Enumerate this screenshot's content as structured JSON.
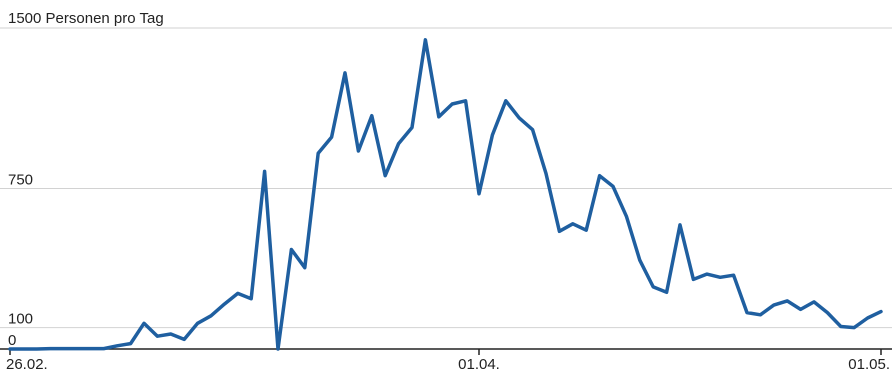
{
  "chart_data": {
    "type": "line",
    "title": "",
    "xlabel": "",
    "ylabel": "1500 Personen pro Tag",
    "ylim": [
      0,
      1500
    ],
    "y_ticks": [
      {
        "value": 750,
        "label": "750"
      },
      {
        "value": 100,
        "label": "100"
      },
      {
        "value": 0,
        "label": "0"
      }
    ],
    "x_ticks": [
      {
        "index": 0,
        "label": "26.02."
      },
      {
        "index": 35,
        "label": "01.04."
      },
      {
        "index": 65,
        "label": "01.05."
      }
    ],
    "grid": true,
    "colors": {
      "series": "#1f5fa0",
      "grid": "#d2d2d2",
      "axis": "#222222",
      "text": "#222222"
    },
    "series": [
      {
        "name": "",
        "values": [
          0,
          0,
          0,
          2,
          2,
          2,
          2,
          2,
          15,
          25,
          120,
          60,
          70,
          45,
          120,
          155,
          210,
          260,
          235,
          830,
          0,
          465,
          380,
          915,
          990,
          1290,
          925,
          1090,
          810,
          960,
          1035,
          1445,
          1085,
          1145,
          1160,
          725,
          1000,
          1160,
          1080,
          1025,
          820,
          550,
          585,
          555,
          810,
          760,
          620,
          415,
          290,
          265,
          580,
          325,
          350,
          335,
          345,
          170,
          160,
          205,
          225,
          185,
          220,
          170,
          105,
          100,
          145,
          175
        ]
      }
    ]
  }
}
